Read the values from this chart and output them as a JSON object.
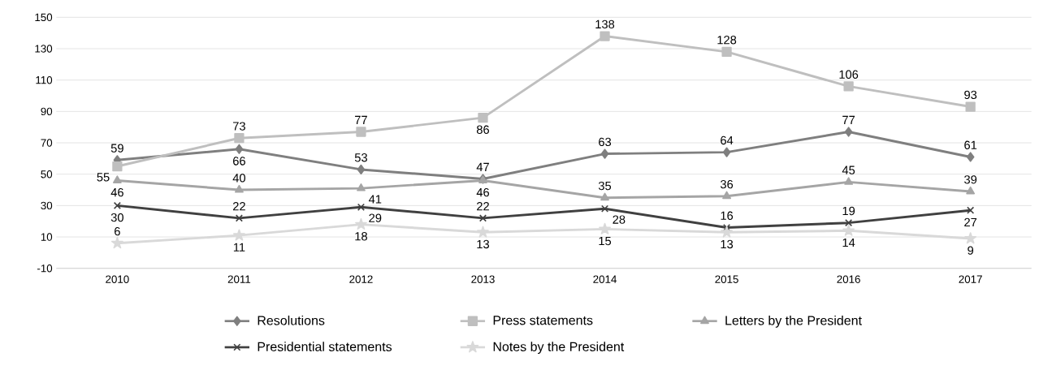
{
  "chart_data": {
    "type": "line",
    "categories": [
      "2010",
      "2011",
      "2012",
      "2013",
      "2014",
      "2015",
      "2016",
      "2017"
    ],
    "series": [
      {
        "name": "Resolutions",
        "color": "#7f7f7f",
        "marker": "diamond",
        "values": [
          59,
          66,
          53,
          47,
          63,
          64,
          77,
          61
        ]
      },
      {
        "name": "Press statements",
        "color": "#bfbfbf",
        "marker": "square",
        "values": [
          55,
          73,
          77,
          86,
          138,
          128,
          106,
          93
        ]
      },
      {
        "name": "Letters by the President",
        "color": "#a5a5a5",
        "marker": "triangle",
        "values": [
          46,
          40,
          41,
          46,
          35,
          36,
          45,
          39
        ]
      },
      {
        "name": "Presidential statements",
        "color": "#404040",
        "marker": "cross",
        "values": [
          30,
          22,
          29,
          22,
          28,
          16,
          19,
          27
        ]
      },
      {
        "name": "Notes by the President",
        "color": "#d9d9d9",
        "marker": "star",
        "values": [
          6,
          11,
          18,
          13,
          15,
          13,
          14,
          9
        ]
      }
    ],
    "ylim": [
      -10,
      150
    ],
    "yticks": [
      -10,
      10,
      30,
      50,
      70,
      90,
      110,
      130,
      150
    ],
    "grid": "y",
    "legend": "bottom",
    "data_labels": true
  }
}
